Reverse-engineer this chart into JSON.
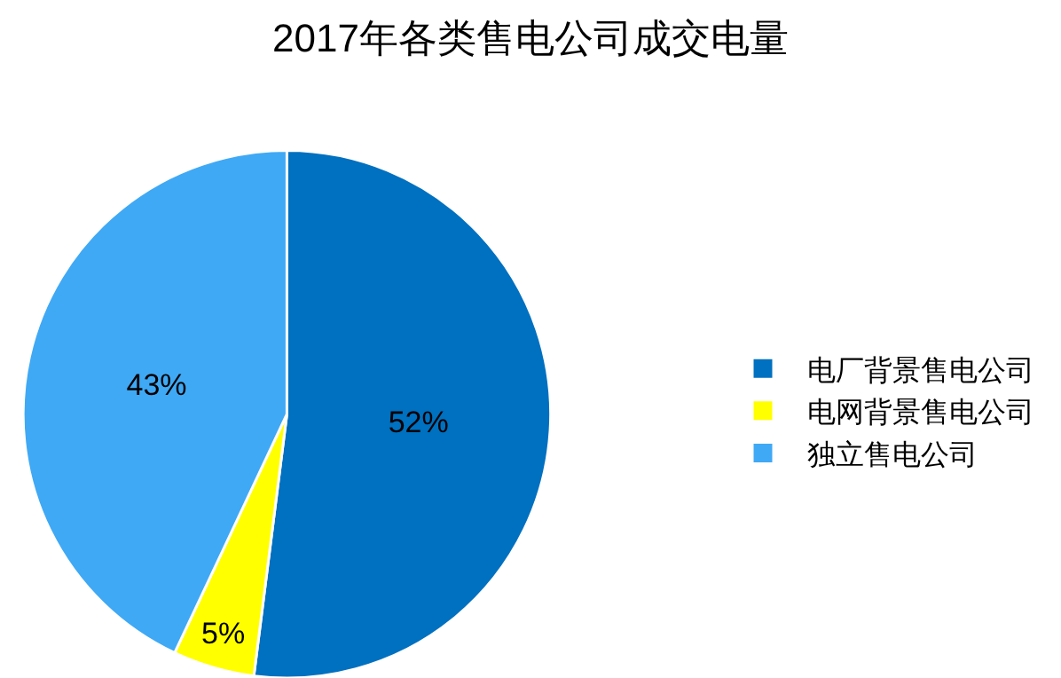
{
  "chart_data": {
    "type": "pie",
    "title": "2017年各类售电公司成交电量",
    "categories": [
      "电厂背景售电公司",
      "电网背景售电公司",
      "独立售电公司"
    ],
    "values": [
      52,
      5,
      43
    ],
    "colors": [
      "#0070c0",
      "#ffff00",
      "#3fa9f5"
    ],
    "value_labels": [
      "52%",
      "5%",
      "43%"
    ],
    "legend": "right"
  }
}
